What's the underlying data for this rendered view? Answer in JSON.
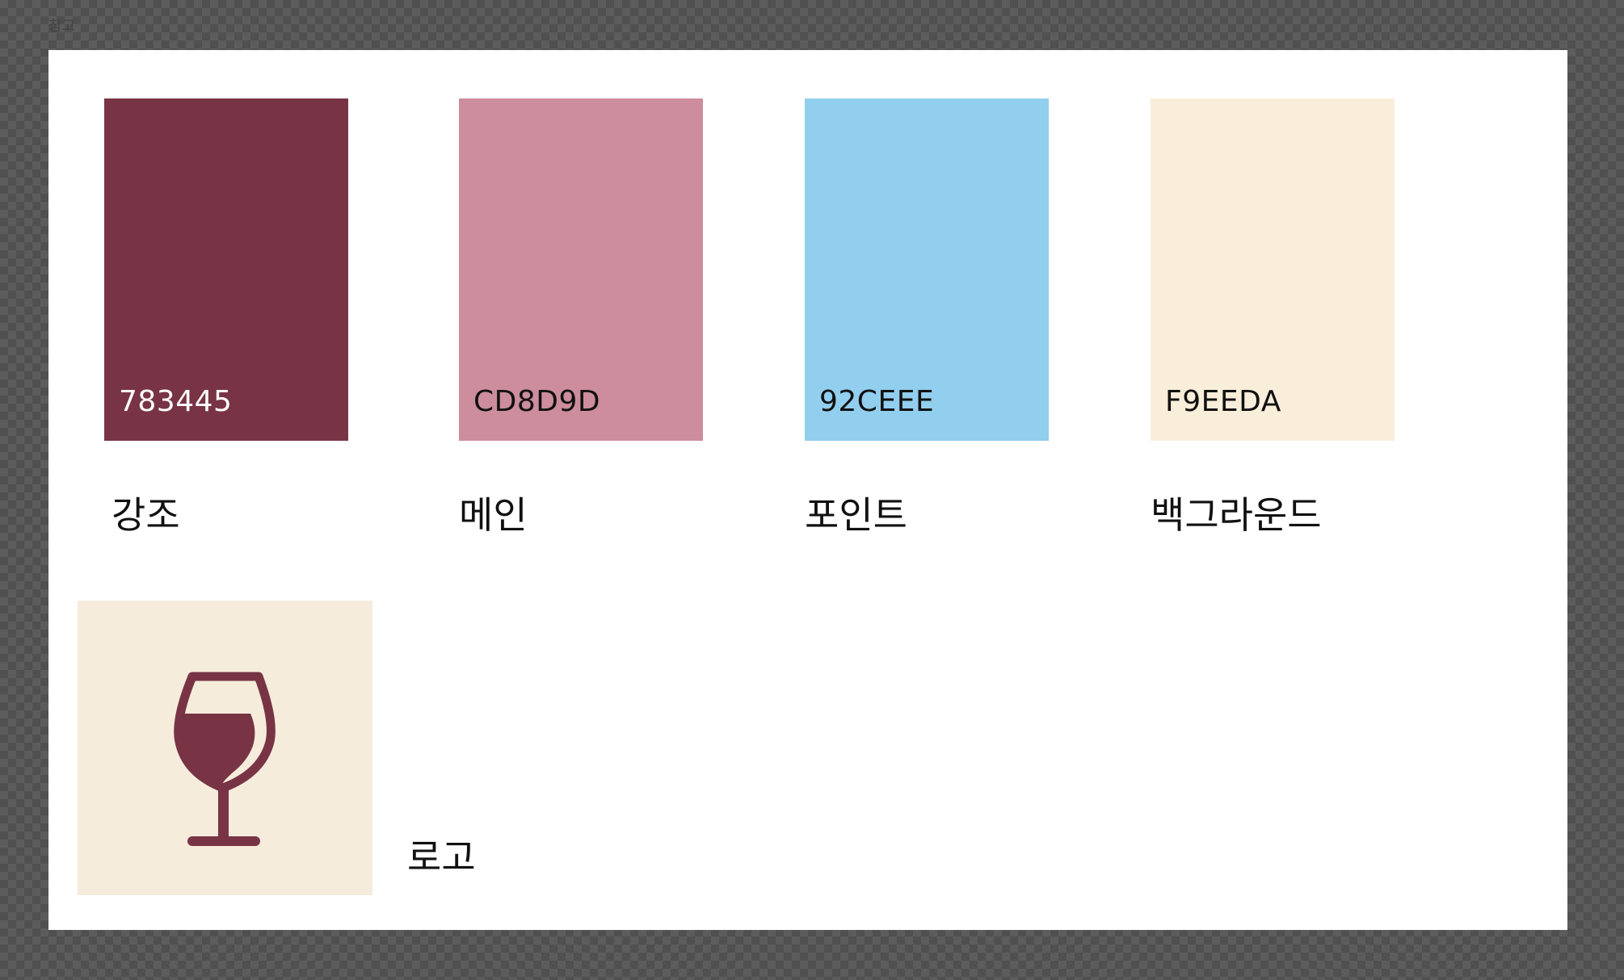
{
  "frame": {
    "label": "참고"
  },
  "swatches": [
    {
      "hex": "783445",
      "name": "강조",
      "color": "#783445",
      "text_color": "#ffffff"
    },
    {
      "hex": "CD8D9D",
      "name": "메인",
      "color": "#CD8D9D",
      "text_color": "#111111"
    },
    {
      "hex": "92CEEE",
      "name": "포인트",
      "color": "#92CEEE",
      "text_color": "#111111"
    },
    {
      "hex": "F9EEDA",
      "name": "백그라운드",
      "color": "#F9EEDA",
      "text_color": "#111111"
    }
  ],
  "logo": {
    "label": "로고",
    "icon": "wine-glass-icon",
    "background": "#F9EEDA",
    "icon_color": "#783445"
  }
}
